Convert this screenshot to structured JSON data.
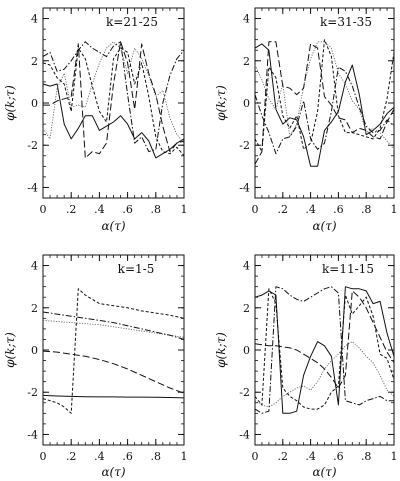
{
  "figure": {
    "panels": [
      {
        "id": "p1",
        "label": "k=21-25",
        "xlabel": "α(τ)",
        "ylabel": "φ(k;τ)"
      },
      {
        "id": "p2",
        "label": "k=31-35",
        "xlabel": "α(τ)",
        "ylabel": "φ(k;τ)"
      },
      {
        "id": "p3",
        "label": "k=1-5",
        "xlabel": "α(τ)",
        "ylabel": "φ(k;τ)"
      },
      {
        "id": "p4",
        "label": "k=11-15",
        "xlabel": "α(τ)",
        "ylabel": "φ(k;τ)"
      }
    ]
  },
  "chart_data": [
    {
      "type": "line",
      "title": "k=21-25",
      "xlabel": "α(τ)",
      "ylabel": "φ(k;τ)",
      "xlim": [
        0,
        1
      ],
      "ylim": [
        -4.5,
        4.5
      ],
      "xticks": [
        "0",
        ".2",
        ".4",
        ".6",
        ".8",
        "1"
      ],
      "yticks": [
        "-4",
        "-2",
        "0",
        "2",
        "4"
      ],
      "series": [
        {
          "style": "solid",
          "color": "#111111",
          "x": [
            0,
            0.05,
            0.1,
            0.15,
            0.2,
            0.25,
            0.3,
            0.35,
            0.4,
            0.45,
            0.5,
            0.55,
            0.6,
            0.65,
            0.7,
            0.75,
            0.8,
            0.85,
            0.9,
            0.95,
            1.0
          ],
          "y": [
            0.9,
            0.8,
            0.9,
            -1.0,
            -1.7,
            -1.2,
            -0.6,
            -0.6,
            -1.3,
            -1.1,
            -0.9,
            -0.6,
            -1.0,
            -1.7,
            -1.4,
            -1.8,
            -2.6,
            -2.4,
            -2.2,
            -1.9,
            -1.7
          ]
        },
        {
          "style": "dotted-fine",
          "color": "#666666",
          "x": [
            0,
            0.05,
            0.1,
            0.15,
            0.2,
            0.25,
            0.3,
            0.35,
            0.4,
            0.45,
            0.5,
            0.55,
            0.6,
            0.65,
            0.7,
            0.75,
            0.8,
            0.85,
            0.9,
            0.95,
            1.0
          ],
          "y": [
            -1.2,
            -1.7,
            0.7,
            1.4,
            -0.2,
            -0.1,
            -0.2,
            0.9,
            1.9,
            2.6,
            2.9,
            2.6,
            1.4,
            2.6,
            2.1,
            1.3,
            0.3,
            0.6,
            -0.7,
            -1.5,
            -1.9
          ]
        },
        {
          "style": "dashed",
          "color": "#111111",
          "x": [
            0,
            0.05,
            0.1,
            0.15,
            0.2,
            0.25,
            0.3,
            0.35,
            0.4,
            0.45,
            0.5,
            0.55,
            0.6,
            0.65,
            0.7,
            0.75,
            0.8,
            0.85,
            0.9,
            0.95,
            1.0
          ],
          "y": [
            1.9,
            1.8,
            1.2,
            0.9,
            -0.4,
            2.6,
            2.1,
            0.8,
            -0.4,
            -0.9,
            2.1,
            2.6,
            2.4,
            0.9,
            1.9,
            0.3,
            -1.6,
            -2.3,
            -2.4,
            -2.1,
            -2.5
          ]
        },
        {
          "style": "long-dash",
          "color": "#111111",
          "x": [
            0,
            0.05,
            0.1,
            0.15,
            0.2,
            0.25,
            0.3,
            0.35,
            0.4,
            0.45,
            0.5,
            0.55,
            0.6,
            0.65,
            0.7,
            0.75,
            0.8,
            0.85,
            0.9,
            0.95,
            1.0
          ],
          "y": [
            -0.1,
            -0.1,
            0.1,
            0.2,
            0.3,
            2.8,
            -2.6,
            -2.3,
            -2.4,
            -1.9,
            0.9,
            2.9,
            1.9,
            -0.3,
            2.8,
            1.4,
            0.4,
            -1.1,
            -2.3,
            -1.9,
            -1.8
          ]
        },
        {
          "style": "dash-dot",
          "color": "#111111",
          "x": [
            0,
            0.05,
            0.1,
            0.15,
            0.2,
            0.25,
            0.3,
            0.35,
            0.4,
            0.45,
            0.5,
            0.55,
            0.6,
            0.65,
            0.7,
            0.75,
            0.8,
            0.85,
            0.9,
            0.95,
            1.0
          ],
          "y": [
            2.2,
            2.4,
            1.5,
            1.6,
            2.0,
            2.5,
            2.9,
            2.6,
            2.4,
            2.2,
            2.7,
            2.9,
            0.4,
            -1.9,
            -1.6,
            -2.3,
            -2.2,
            0.0,
            1.3,
            2.1,
            2.5
          ]
        }
      ]
    },
    {
      "type": "line",
      "title": "k=31-35",
      "xlabel": "α(τ)",
      "ylabel": "φ(k;τ)",
      "xlim": [
        0,
        1
      ],
      "ylim": [
        -4.5,
        4.5
      ],
      "xticks": [
        "0",
        ".2",
        ".4",
        ".6",
        ".8",
        "1"
      ],
      "yticks": [
        "-4",
        "-2",
        "0",
        "2",
        "4"
      ],
      "series": [
        {
          "style": "solid",
          "color": "#111111",
          "x": [
            0,
            0.05,
            0.1,
            0.15,
            0.2,
            0.25,
            0.3,
            0.35,
            0.4,
            0.45,
            0.5,
            0.55,
            0.6,
            0.65,
            0.7,
            0.75,
            0.8,
            0.85,
            0.9,
            0.95,
            1.0
          ],
          "y": [
            2.6,
            2.8,
            2.5,
            -0.3,
            -1.0,
            -0.7,
            -0.8,
            -1.6,
            -3.0,
            -3.0,
            -1.3,
            -0.9,
            -0.4,
            1.0,
            1.8,
            0.4,
            -1.5,
            -1.3,
            -1.0,
            -0.5,
            -0.2
          ]
        },
        {
          "style": "dotted-fine",
          "color": "#666666",
          "x": [
            0,
            0.05,
            0.1,
            0.15,
            0.2,
            0.25,
            0.3,
            0.35,
            0.4,
            0.45,
            0.5,
            0.55,
            0.6,
            0.65,
            0.7,
            0.75,
            0.8,
            0.85,
            0.9,
            0.95,
            1.0
          ],
          "y": [
            1.8,
            1.1,
            0.2,
            -0.3,
            0.9,
            -1.6,
            -1.0,
            0.8,
            2.1,
            2.9,
            2.9,
            2.6,
            1.4,
            0.9,
            0.1,
            -0.3,
            -1.4,
            -1.2,
            -1.4,
            -1.8,
            -2.2
          ]
        },
        {
          "style": "dashed",
          "color": "#111111",
          "x": [
            0,
            0.05,
            0.1,
            0.15,
            0.2,
            0.25,
            0.3,
            0.35,
            0.4,
            0.45,
            0.5,
            0.55,
            0.6,
            0.65,
            0.7,
            0.75,
            0.8,
            0.85,
            0.9,
            0.95,
            1.0
          ],
          "y": [
            -1.7,
            -2.3,
            1.7,
            1.2,
            -0.6,
            -1.2,
            -0.6,
            -2.2,
            -1.9,
            -0.4,
            3.0,
            2.2,
            -0.6,
            -1.4,
            -1.4,
            -1.5,
            -1.6,
            -1.7,
            -1.2,
            0.2,
            2.4
          ]
        },
        {
          "style": "long-dash",
          "color": "#111111",
          "x": [
            0,
            0.05,
            0.1,
            0.15,
            0.2,
            0.25,
            0.3,
            0.35,
            0.4,
            0.45,
            0.5,
            0.55,
            0.6,
            0.65,
            0.7,
            0.75,
            0.8,
            0.85,
            0.9,
            0.95,
            1.0
          ],
          "y": [
            -2.9,
            -2.3,
            2.9,
            2.9,
            0.8,
            0.7,
            0.4,
            0.7,
            2.8,
            2.6,
            0.3,
            -0.1,
            -0.7,
            -0.8,
            -1.4,
            -1.2,
            -1.3,
            -1.6,
            -1.7,
            -0.9,
            -0.3
          ]
        },
        {
          "style": "dash-dot",
          "color": "#111111",
          "x": [
            0,
            0.05,
            0.1,
            0.15,
            0.2,
            0.25,
            0.3,
            0.35,
            0.4,
            0.45,
            0.5,
            0.55,
            0.6,
            0.65,
            0.7,
            0.75,
            0.8,
            0.85,
            0.9,
            0.95,
            1.0
          ],
          "y": [
            0.4,
            -0.6,
            -1.4,
            -2.4,
            -1.7,
            -1.6,
            -1.1,
            0.1,
            -1.7,
            -2.2,
            -1.9,
            -0.4,
            1.7,
            1.5,
            0.8,
            -0.2,
            -1.1,
            -1.4,
            -1.3,
            -0.8,
            -1.1
          ]
        }
      ]
    },
    {
      "type": "line",
      "title": "k=1-5",
      "xlabel": "α(τ)",
      "ylabel": "φ(k;τ)",
      "xlim": [
        0,
        1
      ],
      "ylim": [
        -4.5,
        4.5
      ],
      "xticks": [
        "0",
        ".2",
        ".4",
        ".6",
        ".8",
        "1"
      ],
      "yticks": [
        "-4",
        "-2",
        "0",
        "2",
        "4"
      ],
      "series": [
        {
          "style": "solid",
          "color": "#111111",
          "x": [
            0,
            0.1,
            0.2,
            0.3,
            0.4,
            0.5,
            0.6,
            0.7,
            0.8,
            0.9,
            1.0
          ],
          "y": [
            -2.15,
            -2.18,
            -2.2,
            -2.21,
            -2.22,
            -2.22,
            -2.23,
            -2.23,
            -2.24,
            -2.25,
            -2.27
          ]
        },
        {
          "style": "dotted-fine",
          "color": "#666666",
          "x": [
            0,
            0.1,
            0.2,
            0.3,
            0.4,
            0.5,
            0.6,
            0.7,
            0.8,
            0.9,
            1.0
          ],
          "y": [
            1.4,
            1.35,
            1.3,
            1.25,
            1.2,
            1.1,
            1.0,
            0.9,
            0.8,
            0.7,
            0.6
          ]
        },
        {
          "style": "dashed",
          "color": "#111111",
          "x": [
            0,
            0.05,
            0.1,
            0.15,
            0.2,
            0.25,
            0.3,
            0.35,
            0.4,
            0.5,
            0.6,
            0.7,
            0.8,
            0.9,
            1.0
          ],
          "y": [
            -2.3,
            -2.4,
            -2.5,
            -2.7,
            -3.0,
            2.9,
            2.6,
            2.4,
            2.2,
            2.1,
            2.0,
            1.85,
            1.75,
            1.65,
            1.5
          ]
        },
        {
          "style": "long-dash",
          "color": "#111111",
          "x": [
            0,
            0.1,
            0.2,
            0.3,
            0.4,
            0.5,
            0.6,
            0.7,
            0.8,
            0.9,
            1.0
          ],
          "y": [
            -0.05,
            -0.1,
            -0.2,
            -0.3,
            -0.45,
            -0.65,
            -0.9,
            -1.2,
            -1.5,
            -1.8,
            -2.05
          ]
        },
        {
          "style": "dash-dot",
          "color": "#111111",
          "x": [
            0,
            0.1,
            0.2,
            0.3,
            0.4,
            0.5,
            0.6,
            0.7,
            0.8,
            0.9,
            1.0
          ],
          "y": [
            1.8,
            1.7,
            1.6,
            1.5,
            1.4,
            1.3,
            1.15,
            1.0,
            0.85,
            0.7,
            0.5
          ]
        }
      ]
    },
    {
      "type": "line",
      "title": "k=11-15",
      "xlabel": "α(τ)",
      "ylabel": "φ(k;τ)",
      "xlim": [
        0,
        1
      ],
      "ylim": [
        -4.5,
        4.5
      ],
      "xticks": [
        "0",
        ".2",
        ".4",
        ".6",
        ".8",
        "1"
      ],
      "yticks": [
        "-4",
        "-2",
        "0",
        "2",
        "4"
      ],
      "series": [
        {
          "style": "solid",
          "color": "#111111",
          "x": [
            0,
            0.05,
            0.1,
            0.15,
            0.2,
            0.25,
            0.3,
            0.35,
            0.4,
            0.45,
            0.5,
            0.55,
            0.6,
            0.65,
            0.7,
            0.75,
            0.8,
            0.85,
            0.9,
            0.95,
            1.0
          ],
          "y": [
            2.5,
            2.6,
            2.8,
            2.6,
            -3.0,
            -3.0,
            -2.9,
            -1.2,
            -0.3,
            0.4,
            0.2,
            -0.3,
            -2.6,
            3.0,
            2.9,
            2.9,
            2.8,
            2.2,
            2.3,
            0.8,
            -0.3
          ]
        },
        {
          "style": "dotted-fine",
          "color": "#666666",
          "x": [
            0,
            0.05,
            0.1,
            0.15,
            0.2,
            0.25,
            0.3,
            0.35,
            0.4,
            0.45,
            0.5,
            0.55,
            0.6,
            0.65,
            0.7,
            0.75,
            0.8,
            0.85,
            0.9,
            0.95,
            1.0
          ],
          "y": [
            -2.4,
            -2.6,
            -2.7,
            -2.5,
            -2.2,
            -2.0,
            -1.8,
            -1.7,
            -1.9,
            -1.5,
            -0.9,
            -0.5,
            -0.2,
            0.2,
            0.4,
            0.1,
            -0.3,
            -0.6,
            -1.2,
            -1.9,
            -2.2
          ]
        },
        {
          "style": "dashed",
          "color": "#111111",
          "x": [
            0,
            0.05,
            0.1,
            0.15,
            0.2,
            0.25,
            0.3,
            0.35,
            0.4,
            0.45,
            0.5,
            0.55,
            0.6,
            0.65,
            0.7,
            0.75,
            0.8,
            0.85,
            0.9,
            0.95,
            1.0
          ],
          "y": [
            -2.2,
            -2.6,
            2.9,
            2.2,
            -1.8,
            -2.2,
            -2.4,
            -2.7,
            -2.8,
            -2.8,
            -2.6,
            -2.0,
            -1.7,
            2.6,
            1.7,
            2.1,
            2.5,
            1.6,
            -0.2,
            -0.4,
            -1.4
          ]
        },
        {
          "style": "long-dash",
          "color": "#111111",
          "x": [
            0,
            0.05,
            0.1,
            0.15,
            0.2,
            0.25,
            0.3,
            0.35,
            0.4,
            0.45,
            0.5,
            0.55,
            0.6,
            0.65,
            0.7,
            0.75,
            0.8,
            0.85,
            0.9,
            0.95,
            1.0
          ],
          "y": [
            0.3,
            0.25,
            0.2,
            0.2,
            0.15,
            0.1,
            0.0,
            -0.2,
            -0.4,
            -0.6,
            -0.9,
            -1.3,
            -1.8,
            -1.2,
            2.8,
            2.5,
            2.0,
            1.3,
            0.6,
            -0.1,
            -0.6
          ]
        },
        {
          "style": "dash-dot",
          "color": "#111111",
          "x": [
            0,
            0.05,
            0.1,
            0.15,
            0.2,
            0.25,
            0.3,
            0.35,
            0.4,
            0.45,
            0.5,
            0.55,
            0.6,
            0.65,
            0.7,
            0.75,
            0.8,
            0.85,
            0.9,
            0.95,
            1.0
          ],
          "y": [
            -2.8,
            -3.0,
            -2.9,
            3.0,
            2.9,
            2.6,
            2.4,
            2.3,
            2.5,
            2.7,
            2.9,
            3.0,
            2.7,
            -2.4,
            -2.5,
            -2.6,
            -2.4,
            -2.3,
            -2.2,
            -2.4,
            -2.4
          ]
        }
      ]
    }
  ]
}
